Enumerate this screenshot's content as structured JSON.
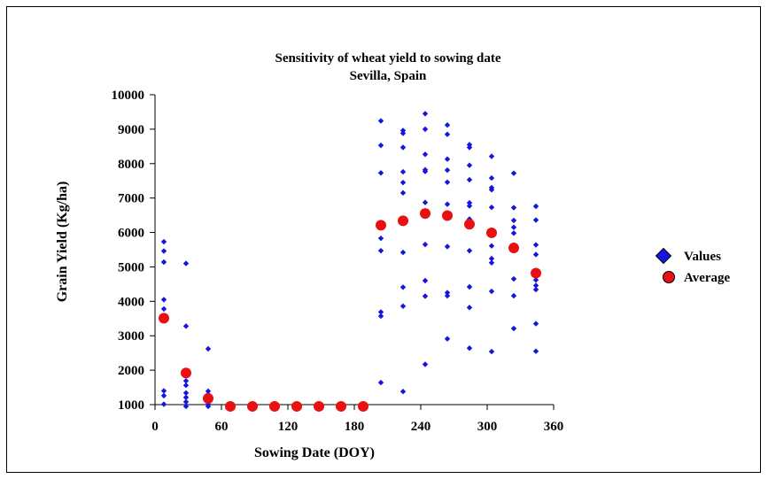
{
  "chart_data": {
    "type": "scatter",
    "title": "Sensitivity of wheat yield to sowing date",
    "subtitle": "Sevilla, Spain",
    "xlabel": "Sowing Date (DOY)",
    "ylabel": "Grain Yield (Kg/ha)",
    "xlim": [
      0,
      360
    ],
    "ylim": [
      1000,
      10000
    ],
    "x_ticks": [
      "0",
      "60",
      "120",
      "180",
      "240",
      "300",
      "360"
    ],
    "y_ticks": [
      "1000",
      "2000",
      "3000",
      "4000",
      "5000",
      "6000",
      "7000",
      "8000",
      "9000",
      "10000"
    ],
    "grid": false,
    "legend_position": "right",
    "colors": {
      "values": "#1515e0",
      "average": "#e81010"
    },
    "series": [
      {
        "name": "Values",
        "marker": "diamond",
        "points": [
          [
            8,
            5730
          ],
          [
            8,
            5460
          ],
          [
            8,
            5140
          ],
          [
            8,
            4050
          ],
          [
            8,
            3780
          ],
          [
            8,
            1400
          ],
          [
            8,
            1260
          ],
          [
            8,
            1010
          ],
          [
            28,
            5100
          ],
          [
            28,
            3280
          ],
          [
            28,
            1690
          ],
          [
            28,
            1560
          ],
          [
            28,
            1340
          ],
          [
            28,
            1210
          ],
          [
            28,
            1080
          ],
          [
            28,
            950
          ],
          [
            48,
            2620
          ],
          [
            48,
            1390
          ],
          [
            48,
            1300
          ],
          [
            48,
            1130
          ],
          [
            48,
            1010
          ],
          [
            48,
            950
          ],
          [
            204,
            9240
          ],
          [
            204,
            8530
          ],
          [
            204,
            7730
          ],
          [
            204,
            5830
          ],
          [
            204,
            5470
          ],
          [
            204,
            3690
          ],
          [
            204,
            3570
          ],
          [
            204,
            1640
          ],
          [
            224,
            8960
          ],
          [
            224,
            8880
          ],
          [
            224,
            8470
          ],
          [
            224,
            7760
          ],
          [
            224,
            7450
          ],
          [
            224,
            7150
          ],
          [
            224,
            5420
          ],
          [
            224,
            4410
          ],
          [
            224,
            3860
          ],
          [
            224,
            1380
          ],
          [
            244,
            9450
          ],
          [
            244,
            9000
          ],
          [
            244,
            8270
          ],
          [
            244,
            7820
          ],
          [
            244,
            7770
          ],
          [
            244,
            6870
          ],
          [
            244,
            5650
          ],
          [
            244,
            4600
          ],
          [
            244,
            4150
          ],
          [
            244,
            2170
          ],
          [
            264,
            9120
          ],
          [
            264,
            8850
          ],
          [
            264,
            8130
          ],
          [
            264,
            7810
          ],
          [
            264,
            7460
          ],
          [
            264,
            6820
          ],
          [
            264,
            5590
          ],
          [
            264,
            4250
          ],
          [
            264,
            4160
          ],
          [
            264,
            2910
          ],
          [
            284,
            8550
          ],
          [
            284,
            8470
          ],
          [
            284,
            7950
          ],
          [
            284,
            7530
          ],
          [
            284,
            6860
          ],
          [
            284,
            6770
          ],
          [
            284,
            6390
          ],
          [
            284,
            5470
          ],
          [
            284,
            4420
          ],
          [
            284,
            3820
          ],
          [
            284,
            2640
          ],
          [
            304,
            8210
          ],
          [
            304,
            7580
          ],
          [
            304,
            7300
          ],
          [
            304,
            7240
          ],
          [
            304,
            6730
          ],
          [
            304,
            5610
          ],
          [
            304,
            5240
          ],
          [
            304,
            5120
          ],
          [
            304,
            4290
          ],
          [
            304,
            2540
          ],
          [
            324,
            7720
          ],
          [
            324,
            6720
          ],
          [
            324,
            6350
          ],
          [
            324,
            6150
          ],
          [
            324,
            5980
          ],
          [
            324,
            5600
          ],
          [
            324,
            4650
          ],
          [
            324,
            4160
          ],
          [
            324,
            3210
          ],
          [
            344,
            6760
          ],
          [
            344,
            6360
          ],
          [
            344,
            5640
          ],
          [
            344,
            5360
          ],
          [
            344,
            4620
          ],
          [
            344,
            4460
          ],
          [
            344,
            4340
          ],
          [
            344,
            3350
          ],
          [
            344,
            2550
          ]
        ]
      },
      {
        "name": "Average",
        "marker": "circle",
        "points": [
          [
            8,
            3510
          ],
          [
            28,
            1920
          ],
          [
            48,
            1180
          ],
          [
            68,
            950
          ],
          [
            88,
            950
          ],
          [
            108,
            950
          ],
          [
            128,
            950
          ],
          [
            148,
            950
          ],
          [
            168,
            950
          ],
          [
            188,
            950
          ],
          [
            204,
            6210
          ],
          [
            224,
            6340
          ],
          [
            244,
            6550
          ],
          [
            264,
            6490
          ],
          [
            284,
            6240
          ],
          [
            304,
            5990
          ],
          [
            324,
            5550
          ],
          [
            344,
            4820
          ]
        ]
      }
    ]
  }
}
